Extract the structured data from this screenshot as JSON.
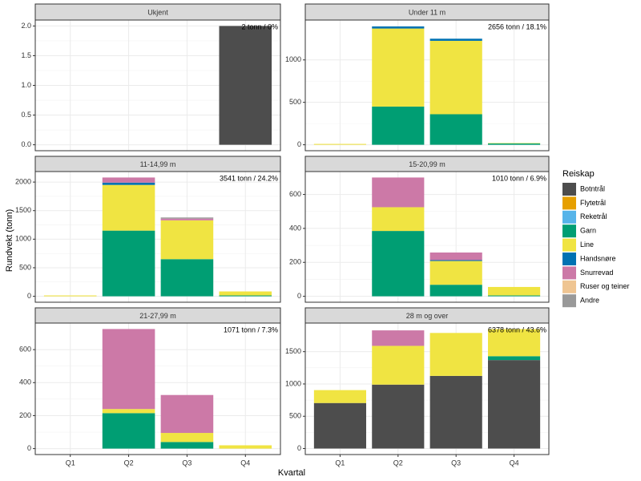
{
  "xlabel": "Kvartal",
  "ylabel": "Rundvekt (tonn)",
  "legend_title": "Reiskap",
  "chart_data": [
    {
      "type": "bar",
      "title": "Ukjent",
      "annotation": "2 tonn / 0%",
      "stacked": true,
      "ylim": [
        -0.1,
        2.1
      ],
      "yticks": [
        {
          "value": 0,
          "label": "0.0"
        },
        {
          "value": 0.5,
          "label": "0.5"
        },
        {
          "value": 1,
          "label": "1.0"
        },
        {
          "value": 1.5,
          "label": "1.5"
        },
        {
          "value": 2,
          "label": "2.0"
        }
      ],
      "series": [
        {
          "name": "Botntrål",
          "color": "#4d4d4d",
          "values": [
            0,
            0,
            0,
            2
          ]
        },
        {
          "name": "Flytetrål",
          "color": "#E69F00",
          "values": [
            0,
            0,
            0,
            0
          ]
        },
        {
          "name": "Reketrål",
          "color": "#56B4E9",
          "values": [
            0,
            0,
            0,
            0
          ]
        },
        {
          "name": "Garn",
          "color": "#009E73",
          "values": [
            0,
            0,
            0,
            0
          ]
        },
        {
          "name": "Line",
          "color": "#F0E442",
          "values": [
            0,
            0,
            0,
            0
          ]
        },
        {
          "name": "Handsnøre",
          "color": "#0072B2",
          "values": [
            0,
            0,
            0,
            0
          ]
        },
        {
          "name": "Snurrevad",
          "color": "#CC79A7",
          "values": [
            0,
            0,
            0,
            0
          ]
        },
        {
          "name": "Ruser og teiner",
          "color": "#EFC592",
          "values": [
            0,
            0,
            0,
            0
          ]
        },
        {
          "name": "Andre",
          "color": "#999999",
          "values": [
            0,
            0,
            0,
            0
          ]
        }
      ]
    },
    {
      "type": "bar",
      "title": "Under 11 m",
      "annotation": "2656 tonn / 18.1%",
      "stacked": true,
      "ylim": [
        -70,
        1470
      ],
      "yticks": [
        0,
        500,
        1000
      ],
      "series": [
        {
          "name": "Botntrål",
          "color": "#4d4d4d",
          "values": [
            0,
            0,
            0,
            0
          ]
        },
        {
          "name": "Flytetrål",
          "color": "#E69F00",
          "values": [
            0,
            0,
            0,
            0
          ]
        },
        {
          "name": "Reketrål",
          "color": "#56B4E9",
          "values": [
            0,
            0,
            0,
            0
          ]
        },
        {
          "name": "Garn",
          "color": "#009E73",
          "values": [
            0,
            450,
            360,
            15
          ]
        },
        {
          "name": "Line",
          "color": "#F0E442",
          "values": [
            10,
            920,
            865,
            5
          ]
        },
        {
          "name": "Handsnøre",
          "color": "#0072B2",
          "values": [
            0,
            25,
            25,
            0
          ]
        },
        {
          "name": "Snurrevad",
          "color": "#CC79A7",
          "values": [
            0,
            0,
            0,
            0
          ]
        },
        {
          "name": "Ruser og teiner",
          "color": "#EFC592",
          "values": [
            0,
            0,
            0,
            0
          ]
        },
        {
          "name": "Andre",
          "color": "#999999",
          "values": [
            0,
            0,
            0,
            0
          ]
        }
      ]
    },
    {
      "type": "bar",
      "title": "11-14,99 m",
      "annotation": "3541 tonn / 24.2%",
      "stacked": true,
      "ylim": [
        -104,
        2184
      ],
      "yticks": [
        0,
        500,
        1000,
        1500,
        2000
      ],
      "series": [
        {
          "name": "Botntrål",
          "color": "#4d4d4d",
          "values": [
            0,
            0,
            0,
            0
          ]
        },
        {
          "name": "Flytetrål",
          "color": "#E69F00",
          "values": [
            0,
            0,
            0,
            0
          ]
        },
        {
          "name": "Reketrål",
          "color": "#56B4E9",
          "values": [
            0,
            0,
            0,
            0
          ]
        },
        {
          "name": "Garn",
          "color": "#009E73",
          "values": [
            0,
            1150,
            650,
            15
          ]
        },
        {
          "name": "Line",
          "color": "#F0E442",
          "values": [
            15,
            800,
            680,
            70
          ]
        },
        {
          "name": "Handsnøre",
          "color": "#0072B2",
          "values": [
            0,
            40,
            0,
            0
          ]
        },
        {
          "name": "Snurrevad",
          "color": "#CC79A7",
          "values": [
            0,
            90,
            30,
            0
          ]
        },
        {
          "name": "Ruser og teiner",
          "color": "#EFC592",
          "values": [
            0,
            0,
            0,
            0
          ]
        },
        {
          "name": "Andre",
          "color": "#999999",
          "values": [
            0,
            0,
            20,
            0
          ]
        }
      ]
    },
    {
      "type": "bar",
      "title": "15-20,99 m",
      "annotation": "1010 tonn / 6.9%",
      "stacked": true,
      "ylim": [
        -35,
        735
      ],
      "yticks": [
        0,
        200,
        400,
        600
      ],
      "series": [
        {
          "name": "Botntrål",
          "color": "#4d4d4d",
          "values": [
            0,
            0,
            0,
            0
          ]
        },
        {
          "name": "Flytetrål",
          "color": "#E69F00",
          "values": [
            0,
            0,
            0,
            0
          ]
        },
        {
          "name": "Reketrål",
          "color": "#56B4E9",
          "values": [
            0,
            0,
            0,
            0
          ]
        },
        {
          "name": "Garn",
          "color": "#009E73",
          "values": [
            0,
            385,
            68,
            5
          ]
        },
        {
          "name": "Line",
          "color": "#F0E442",
          "values": [
            0,
            140,
            140,
            50
          ]
        },
        {
          "name": "Handsnøre",
          "color": "#0072B2",
          "values": [
            0,
            0,
            5,
            0
          ]
        },
        {
          "name": "Snurrevad",
          "color": "#CC79A7",
          "values": [
            0,
            175,
            45,
            0
          ]
        },
        {
          "name": "Ruser og teiner",
          "color": "#EFC592",
          "values": [
            0,
            0,
            0,
            0
          ]
        },
        {
          "name": "Andre",
          "color": "#999999",
          "values": [
            0,
            0,
            0,
            0
          ]
        }
      ]
    },
    {
      "type": "bar",
      "title": "21-27,99 m",
      "annotation": "1071 tonn / 7.3%",
      "stacked": true,
      "categories": [
        "Q1",
        "Q2",
        "Q3",
        "Q4"
      ],
      "ylim": [
        -36,
        761
      ],
      "yticks": [
        0,
        200,
        400,
        600
      ],
      "series": [
        {
          "name": "Botntrål",
          "color": "#4d4d4d",
          "values": [
            0,
            0,
            0,
            0
          ]
        },
        {
          "name": "Flytetrål",
          "color": "#E69F00",
          "values": [
            0,
            0,
            0,
            0
          ]
        },
        {
          "name": "Reketrål",
          "color": "#56B4E9",
          "values": [
            0,
            0,
            0,
            0
          ]
        },
        {
          "name": "Garn",
          "color": "#009E73",
          "values": [
            0,
            215,
            40,
            0
          ]
        },
        {
          "name": "Line",
          "color": "#F0E442",
          "values": [
            0,
            25,
            55,
            20
          ]
        },
        {
          "name": "Handsnøre",
          "color": "#0072B2",
          "values": [
            0,
            0,
            0,
            0
          ]
        },
        {
          "name": "Snurrevad",
          "color": "#CC79A7",
          "values": [
            0,
            485,
            230,
            0
          ]
        },
        {
          "name": "Ruser og teiner",
          "color": "#EFC592",
          "values": [
            0,
            0,
            0,
            0
          ]
        },
        {
          "name": "Andre",
          "color": "#999999",
          "values": [
            0,
            0,
            0,
            0
          ]
        }
      ]
    },
    {
      "type": "bar",
      "title": "28 m og over",
      "annotation": "6378 tonn / 43.6%",
      "stacked": true,
      "categories": [
        "Q1",
        "Q2",
        "Q3",
        "Q4"
      ],
      "ylim": [
        -93,
        1943
      ],
      "yticks": [
        0,
        500,
        1000,
        1500
      ],
      "series": [
        {
          "name": "Botntrål",
          "color": "#4d4d4d",
          "values": [
            705,
            990,
            1125,
            1370
          ]
        },
        {
          "name": "Flytetrål",
          "color": "#E69F00",
          "values": [
            0,
            0,
            0,
            0
          ]
        },
        {
          "name": "Reketrål",
          "color": "#56B4E9",
          "values": [
            0,
            0,
            0,
            0
          ]
        },
        {
          "name": "Garn",
          "color": "#009E73",
          "values": [
            0,
            0,
            0,
            60
          ]
        },
        {
          "name": "Line",
          "color": "#F0E442",
          "values": [
            200,
            600,
            665,
            420
          ]
        },
        {
          "name": "Handsnøre",
          "color": "#0072B2",
          "values": [
            0,
            0,
            0,
            0
          ]
        },
        {
          "name": "Snurrevad",
          "color": "#CC79A7",
          "values": [
            0,
            240,
            0,
            0
          ]
        },
        {
          "name": "Ruser og teiner",
          "color": "#EFC592",
          "values": [
            0,
            0,
            0,
            0
          ]
        },
        {
          "name": "Andre",
          "color": "#999999",
          "values": [
            0,
            0,
            0,
            0
          ]
        }
      ]
    }
  ]
}
